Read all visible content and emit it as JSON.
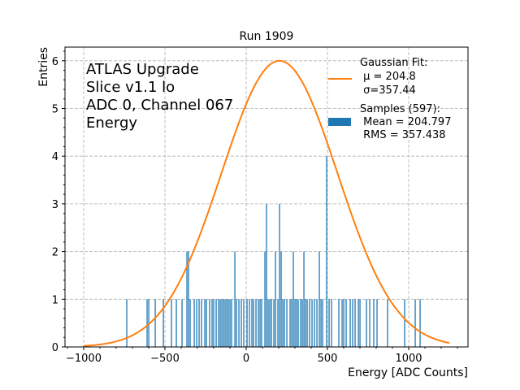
{
  "chart_data": {
    "type": "bar",
    "title": "Run 1909",
    "xlabel": "Energy [ADC Counts]",
    "ylabel": "Entries",
    "xlim": [
      -1115,
      1365
    ],
    "ylim": [
      0,
      6.3
    ],
    "xticks": [
      -1000,
      -500,
      0,
      500,
      1000
    ],
    "xtick_labels": [
      "−1000",
      "−500",
      "0",
      "500",
      "1000"
    ],
    "yticks": [
      0,
      1,
      2,
      3,
      4,
      5,
      6
    ],
    "ytick_labels": [
      "0",
      "1",
      "2",
      "3",
      "4",
      "5",
      "6"
    ],
    "grid": true,
    "annotation_lines": [
      "ATLAS Upgrade",
      "Slice v1.1 lo",
      "ADC 0, Channel 067",
      "Energy"
    ],
    "legend_position": "top-right",
    "legend": [
      {
        "type": "line",
        "color": "#ff7f0e",
        "lines": [
          "Gaussian Fit:",
          " μ = 204.8",
          " σ=357.44"
        ]
      },
      {
        "type": "patch",
        "color": "#1f77b4",
        "lines": [
          "Samples (597):",
          " Mean = 204.797",
          " RMS = 357.438"
        ]
      }
    ],
    "histogram": {
      "color": "#1f77b4",
      "bins": [
        [
          -735,
          1
        ],
        [
          -610,
          1
        ],
        [
          -600,
          1
        ],
        [
          -560,
          1
        ],
        [
          -510,
          1
        ],
        [
          -460,
          1
        ],
        [
          -430,
          1
        ],
        [
          -395,
          1
        ],
        [
          -365,
          2
        ],
        [
          -355,
          2
        ],
        [
          -345,
          1
        ],
        [
          -320,
          1
        ],
        [
          -305,
          1
        ],
        [
          -290,
          1
        ],
        [
          -275,
          1
        ],
        [
          -255,
          1
        ],
        [
          -245,
          1
        ],
        [
          -225,
          1
        ],
        [
          -210,
          1
        ],
        [
          -200,
          1
        ],
        [
          -185,
          1
        ],
        [
          -170,
          1
        ],
        [
          -160,
          1
        ],
        [
          -150,
          1
        ],
        [
          -140,
          1
        ],
        [
          -130,
          1
        ],
        [
          -120,
          1
        ],
        [
          -110,
          1
        ],
        [
          -100,
          1
        ],
        [
          -90,
          1
        ],
        [
          -70,
          2
        ],
        [
          -60,
          1
        ],
        [
          -45,
          1
        ],
        [
          -30,
          1
        ],
        [
          -15,
          1
        ],
        [
          5,
          1
        ],
        [
          20,
          1
        ],
        [
          35,
          1
        ],
        [
          45,
          1
        ],
        [
          60,
          1
        ],
        [
          75,
          1
        ],
        [
          85,
          1
        ],
        [
          95,
          1
        ],
        [
          115,
          2
        ],
        [
          125,
          3
        ],
        [
          135,
          1
        ],
        [
          145,
          1
        ],
        [
          155,
          1
        ],
        [
          170,
          1
        ],
        [
          180,
          2
        ],
        [
          195,
          1
        ],
        [
          205,
          3
        ],
        [
          215,
          2
        ],
        [
          225,
          1
        ],
        [
          235,
          1
        ],
        [
          250,
          1
        ],
        [
          270,
          1
        ],
        [
          280,
          1
        ],
        [
          290,
          2
        ],
        [
          300,
          1
        ],
        [
          310,
          1
        ],
        [
          320,
          1
        ],
        [
          335,
          1
        ],
        [
          345,
          1
        ],
        [
          355,
          2
        ],
        [
          365,
          1
        ],
        [
          375,
          1
        ],
        [
          390,
          1
        ],
        [
          405,
          1
        ],
        [
          420,
          1
        ],
        [
          435,
          1
        ],
        [
          450,
          2
        ],
        [
          460,
          1
        ],
        [
          470,
          1
        ],
        [
          495,
          4
        ],
        [
          510,
          1
        ],
        [
          525,
          1
        ],
        [
          570,
          1
        ],
        [
          590,
          1
        ],
        [
          600,
          1
        ],
        [
          615,
          1
        ],
        [
          640,
          1
        ],
        [
          655,
          1
        ],
        [
          670,
          1
        ],
        [
          690,
          1
        ],
        [
          700,
          1
        ],
        [
          740,
          1
        ],
        [
          760,
          1
        ],
        [
          785,
          1
        ],
        [
          805,
          1
        ],
        [
          870,
          1
        ],
        [
          975,
          1
        ],
        [
          1040,
          1
        ],
        [
          1070,
          1
        ]
      ]
    },
    "fit": {
      "type": "gaussian",
      "color": "#ff7f0e",
      "mu": 204.8,
      "sigma": 357.44,
      "amplitude": 6.0,
      "x_range": [
        -1000,
        1250
      ]
    }
  }
}
